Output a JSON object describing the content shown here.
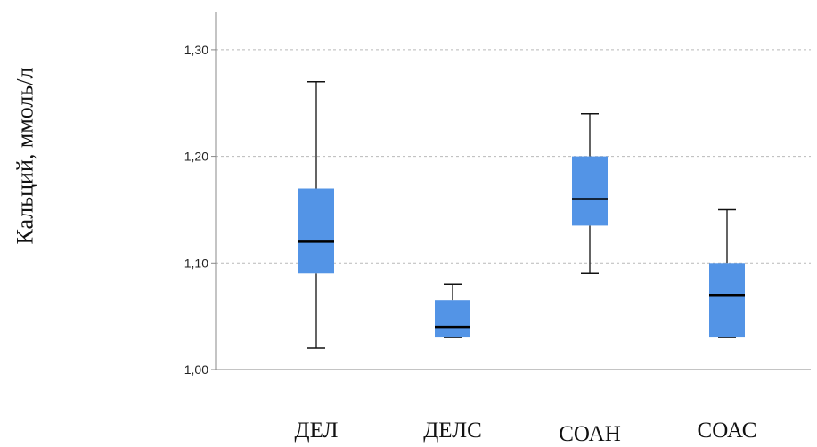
{
  "chart_data": {
    "type": "boxplot",
    "ylabel": "Кальций, ммоль/л",
    "xlabel": "",
    "ylim": [
      1.0,
      1.335
    ],
    "yticks": [
      "1,00",
      "1,10",
      "1,20",
      "1,30"
    ],
    "ytick_values": [
      1.0,
      1.1,
      1.2,
      1.3
    ],
    "grid": true,
    "box_color": "#5394e6",
    "categories": [
      "ДЕЛ",
      "ДЕЛС",
      "СОАН",
      "СОАС"
    ],
    "boxes": [
      {
        "category": "ДЕЛ",
        "min": 1.02,
        "q1": 1.09,
        "median": 1.12,
        "q3": 1.17,
        "max": 1.27
      },
      {
        "category": "ДЕЛС",
        "min": 1.03,
        "q1": 1.03,
        "median": 1.04,
        "q3": 1.065,
        "max": 1.08
      },
      {
        "category": "СОАН",
        "min": 1.09,
        "q1": 1.135,
        "median": 1.16,
        "q3": 1.2,
        "max": 1.24
      },
      {
        "category": "СОАС",
        "min": 1.03,
        "q1": 1.03,
        "median": 1.07,
        "q3": 1.1,
        "max": 1.15
      }
    ]
  }
}
